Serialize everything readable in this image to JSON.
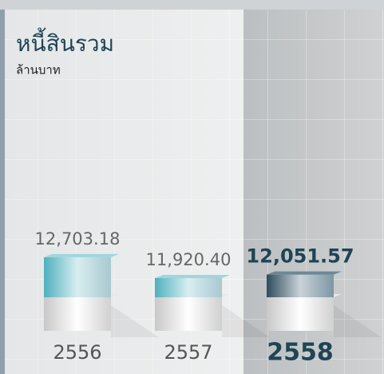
{
  "chart_data": {
    "type": "bar",
    "title": "หนี้สินรวม",
    "subtitle": "ล้านบาท",
    "categories": [
      "2556",
      "2557",
      "2558"
    ],
    "values": [
      12703.18,
      11920.4,
      12051.57
    ],
    "value_labels": [
      "12,703.18",
      "11,920.40",
      "12,051.57"
    ],
    "color": "#5fb7c4",
    "ylim": [
      11200,
      13000
    ]
  }
}
